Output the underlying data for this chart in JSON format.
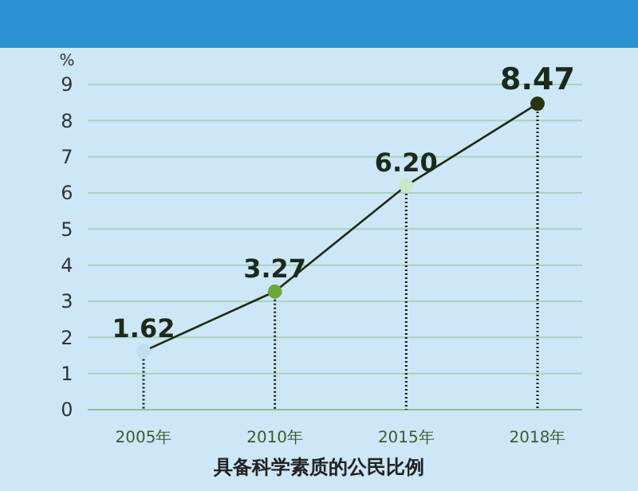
{
  "chart_data": {
    "type": "line",
    "title": "具备科学素质的公民比例",
    "ylabel": "%",
    "categories": [
      "2005年",
      "2010年",
      "2015年",
      "2018年"
    ],
    "series": [
      {
        "color": "#1e2a12",
        "values": [
          1.62,
          3.27,
          6.2,
          8.47
        ],
        "marker": "none",
        "line_style": "solid"
      },
      {
        "type": "lollipop",
        "color": "#1a1a1a",
        "colors": [
          "#bfe0f2",
          "#6aa63a",
          "#c8e6c8",
          "#2a3312"
        ],
        "values": [
          1.62,
          3.27,
          6.2,
          8.47
        ],
        "marker": "circle",
        "line_style": "dotted"
      }
    ],
    "value_labels": [
      "1.62",
      "3.27",
      "6.20",
      "8.47"
    ],
    "ylim": [
      0,
      9
    ],
    "yticks": [
      0,
      1,
      2,
      3,
      4,
      5,
      6,
      7,
      8,
      9
    ],
    "grid": "y"
  }
}
